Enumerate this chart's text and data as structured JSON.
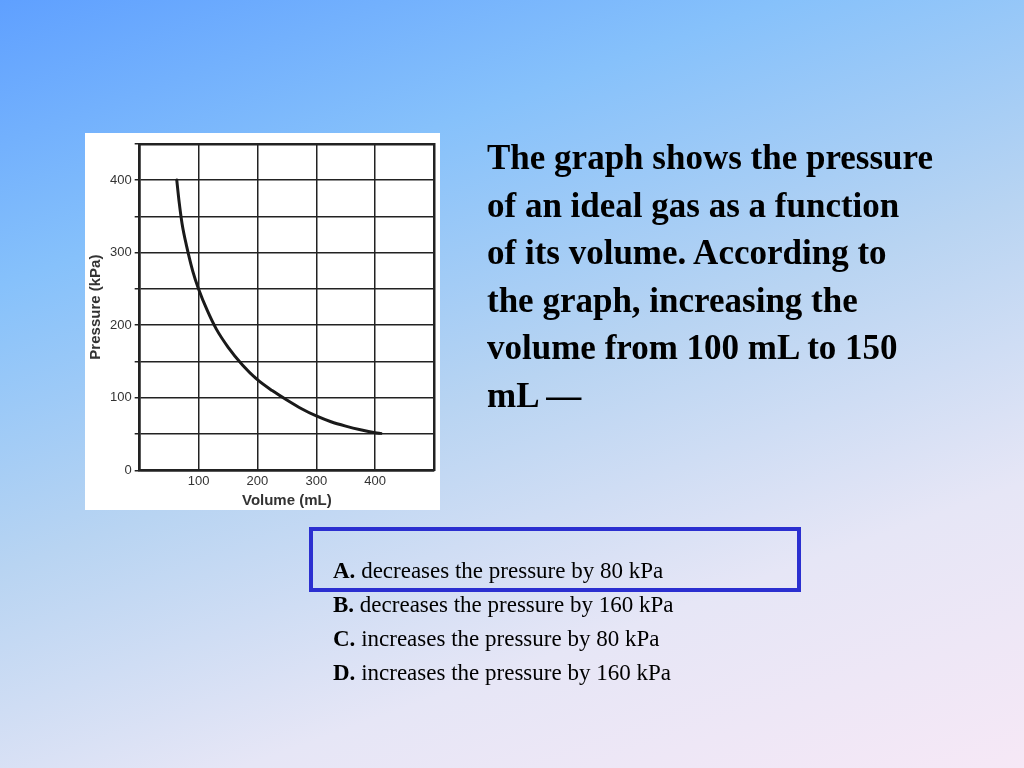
{
  "chart_data": {
    "type": "line",
    "xlabel": "Volume (mL)",
    "ylabel": "Pressure (kPa)",
    "x": [
      63,
      67,
      72,
      80,
      90,
      100,
      115,
      130,
      150,
      175,
      200,
      225,
      250,
      275,
      300,
      325,
      350,
      375,
      400,
      410
    ],
    "values": [
      400,
      370,
      340,
      308,
      275,
      250,
      220,
      195,
      170,
      145,
      125,
      110,
      97,
      85,
      75,
      67,
      61,
      56,
      52,
      51
    ],
    "color": "#1a1a1a",
    "marker": "none",
    "line_style": "solid",
    "grid": true,
    "legend": false,
    "xlim": [
      0,
      500
    ],
    "xticks": [
      {
        "value": 0,
        "label": null
      },
      100,
      200,
      300,
      400,
      {
        "value": 500,
        "label": null
      }
    ],
    "ylim": [
      0,
      450
    ],
    "yticks": [
      0,
      {
        "value": 50,
        "label": null
      },
      100,
      {
        "value": 150,
        "label": null
      },
      200,
      {
        "value": 250,
        "label": null
      },
      300,
      {
        "value": 350,
        "label": null
      },
      400,
      {
        "value": 450,
        "label": null
      }
    ],
    "annotations": [
      "The graph shows the pressure of an ideal gas as a function of its volume. According to the graph, increasing the volume from 100 mL to 150 mL —",
      "A. decreases the pressure by 80 kPa",
      "B. decreases the pressure by 160 kPa",
      "C. increases the pressure by 80 kPa",
      "D. increases the pressure by 160 kPa"
    ]
  }
}
